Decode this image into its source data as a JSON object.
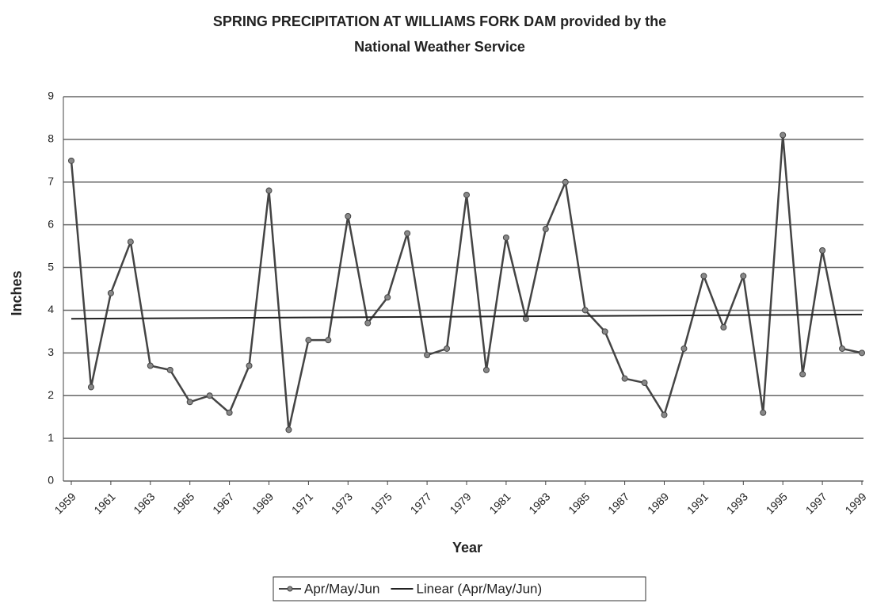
{
  "chart_data": {
    "type": "line",
    "title": "SPRING PRECIPITATION AT WILLIAMS FORK DAM provided by the",
    "subtitle": "National Weather Service",
    "x_label": "Year",
    "y_label": "Inches",
    "x": [
      1959,
      1960,
      1961,
      1962,
      1963,
      1964,
      1965,
      1966,
      1967,
      1968,
      1969,
      1970,
      1971,
      1972,
      1973,
      1974,
      1975,
      1976,
      1977,
      1978,
      1979,
      1980,
      1981,
      1982,
      1983,
      1984,
      1985,
      1986,
      1987,
      1988,
      1989,
      1990,
      1991,
      1992,
      1993,
      1994,
      1995,
      1996,
      1997,
      1998,
      1999
    ],
    "series": [
      {
        "name": "Apr/May/Jun",
        "color": "#444444",
        "values": [
          7.5,
          2.2,
          4.4,
          5.6,
          2.7,
          2.6,
          1.85,
          2.0,
          1.6,
          2.7,
          6.8,
          1.2,
          3.3,
          3.3,
          6.2,
          3.7,
          4.3,
          5.8,
          2.95,
          3.1,
          6.7,
          2.6,
          5.7,
          3.8,
          5.9,
          7.0,
          4.0,
          3.5,
          2.4,
          2.3,
          1.55,
          3.1,
          4.8,
          3.6,
          4.8,
          1.6,
          8.1,
          2.5,
          5.4,
          3.1,
          3.0
        ]
      },
      {
        "name": "Linear (Apr/May/Jun)",
        "color": "#222222",
        "x": [
          1959,
          1999
        ],
        "values": [
          3.8,
          3.9
        ]
      }
    ],
    "xlim": [
      1959,
      1999
    ],
    "xticks": [
      1959,
      1961,
      1963,
      1965,
      1967,
      1969,
      1971,
      1973,
      1975,
      1977,
      1979,
      1981,
      1983,
      1985,
      1987,
      1989,
      1991,
      1993,
      1995,
      1997,
      1999
    ],
    "ylim": [
      0,
      9
    ],
    "yticks": [
      0,
      1,
      2,
      3,
      4,
      5,
      6,
      7,
      8,
      9
    ],
    "grid": true,
    "legend": "bottom"
  }
}
